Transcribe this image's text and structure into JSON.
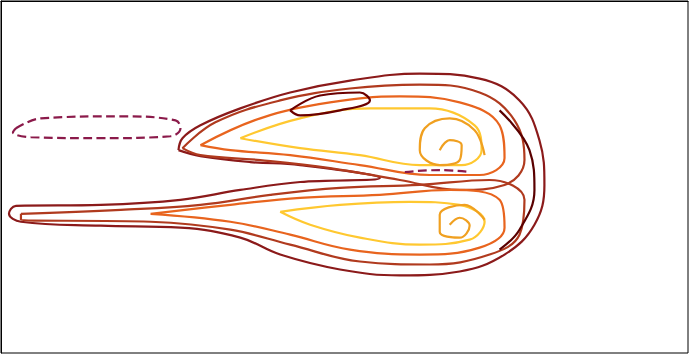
{
  "chart_data": {
    "type": "line",
    "tick_labels": false,
    "grid": false,
    "xlim": [
      0,
      689
    ],
    "ylim": [
      354,
      0
    ],
    "series": [
      {
        "color": "#8b1a1a",
        "line_style": "solid",
        "x": [
          178,
          182,
          200,
          240,
          290,
          350,
          420,
          480,
          520,
          540,
          545,
          535,
          505,
          460,
          400,
          340,
          280,
          240,
          180,
          100,
          20,
          8,
          15,
          100,
          180,
          240,
          300,
          380,
          300,
          250,
          200,
          178
        ],
        "values": [
          150,
          138,
          125,
          108,
          92,
          80,
          73,
          78,
          100,
          140,
          185,
          225,
          255,
          272,
          276,
          270,
          255,
          238,
          228,
          226,
          222,
          214,
          206,
          205,
          200,
          190,
          182,
          178,
          165,
          162,
          156,
          150
        ]
      },
      {
        "color": "#b03a1e",
        "line_style": "solid",
        "x": [
          182,
          215,
          280,
          350,
          420,
          480,
          515,
          525,
          505,
          460,
          400,
          330,
          260,
          200,
          182
        ],
        "values": [
          148,
          122,
          100,
          88,
          84,
          92,
          120,
          160,
          185,
          190,
          180,
          168,
          160,
          155,
          148
        ]
      },
      {
        "color": "#e8641e",
        "line_style": "solid",
        "x": [
          200,
          260,
          330,
          400,
          460,
          500,
          505,
          480,
          430,
          360,
          290,
          230,
          200
        ],
        "values": [
          145,
          118,
          102,
          96,
          102,
          125,
          158,
          175,
          175,
          165,
          155,
          150,
          145
        ]
      },
      {
        "color": "#ffc830",
        "line_style": "solid",
        "x": [
          240,
          300,
          370,
          430,
          475,
          482,
          462,
          420,
          360,
          300,
          240
        ],
        "values": [
          138,
          118,
          108,
          108,
          125,
          150,
          165,
          165,
          155,
          148,
          138
        ]
      },
      {
        "color": "#f0a020",
        "line_style": "solid",
        "x": [
          440,
          450,
          462,
          460,
          440,
          420,
          425,
          450,
          475,
          485
        ],
        "values": [
          150,
          140,
          145,
          160,
          165,
          150,
          128,
          118,
          130,
          155
        ]
      },
      {
        "color": "#6b0000",
        "line_style": "solid",
        "x": [
          290,
          320,
          360,
          370,
          340,
          300,
          290
        ],
        "values": [
          110,
          95,
          92,
          100,
          110,
          115,
          110
        ]
      },
      {
        "color": "#b03a1e",
        "line_style": "solid",
        "x": [
          20,
          120,
          200,
          270,
          340,
          420,
          490,
          525,
          520,
          490,
          430,
          360,
          290,
          230,
          150,
          20,
          20
        ],
        "values": [
          214,
          210,
          205,
          195,
          188,
          185,
          180,
          200,
          235,
          255,
          265,
          262,
          245,
          230,
          222,
          220,
          214
        ]
      },
      {
        "color": "#e8641e",
        "line_style": "solid",
        "x": [
          150,
          230,
          300,
          380,
          450,
          500,
          505,
          480,
          420,
          350,
          290,
          230,
          150
        ],
        "values": [
          214,
          205,
          198,
          195,
          190,
          200,
          228,
          248,
          255,
          250,
          235,
          222,
          214
        ]
      },
      {
        "color": "#ffc830",
        "line_style": "solid",
        "x": [
          280,
          340,
          410,
          460,
          485,
          470,
          420,
          360,
          310,
          280
        ],
        "values": [
          212,
          205,
          202,
          205,
          222,
          240,
          245,
          238,
          225,
          212
        ]
      },
      {
        "color": "#f0a020",
        "line_style": "solid",
        "x": [
          450,
          460,
          470,
          460,
          440,
          440,
          465,
          485
        ],
        "values": [
          225,
          218,
          226,
          238,
          232,
          215,
          205,
          220
        ]
      },
      {
        "color": "#5a0000",
        "line_style": "solid",
        "x": [
          500,
          530,
          535,
          520,
          500
        ],
        "values": [
          110,
          150,
          190,
          230,
          250
        ]
      },
      {
        "color": "#8b1a4a",
        "line_style": "dashed",
        "x": [
          15,
          40,
          120,
          175,
          180,
          170,
          100,
          30,
          12,
          15
        ],
        "values": [
          128,
          118,
          116,
          120,
          128,
          136,
          138,
          137,
          132,
          128
        ]
      },
      {
        "color": "#8b1a4a",
        "line_style": "dashed",
        "x": [
          405,
          440,
          470
        ],
        "values": [
          172,
          170,
          172
        ]
      }
    ]
  }
}
